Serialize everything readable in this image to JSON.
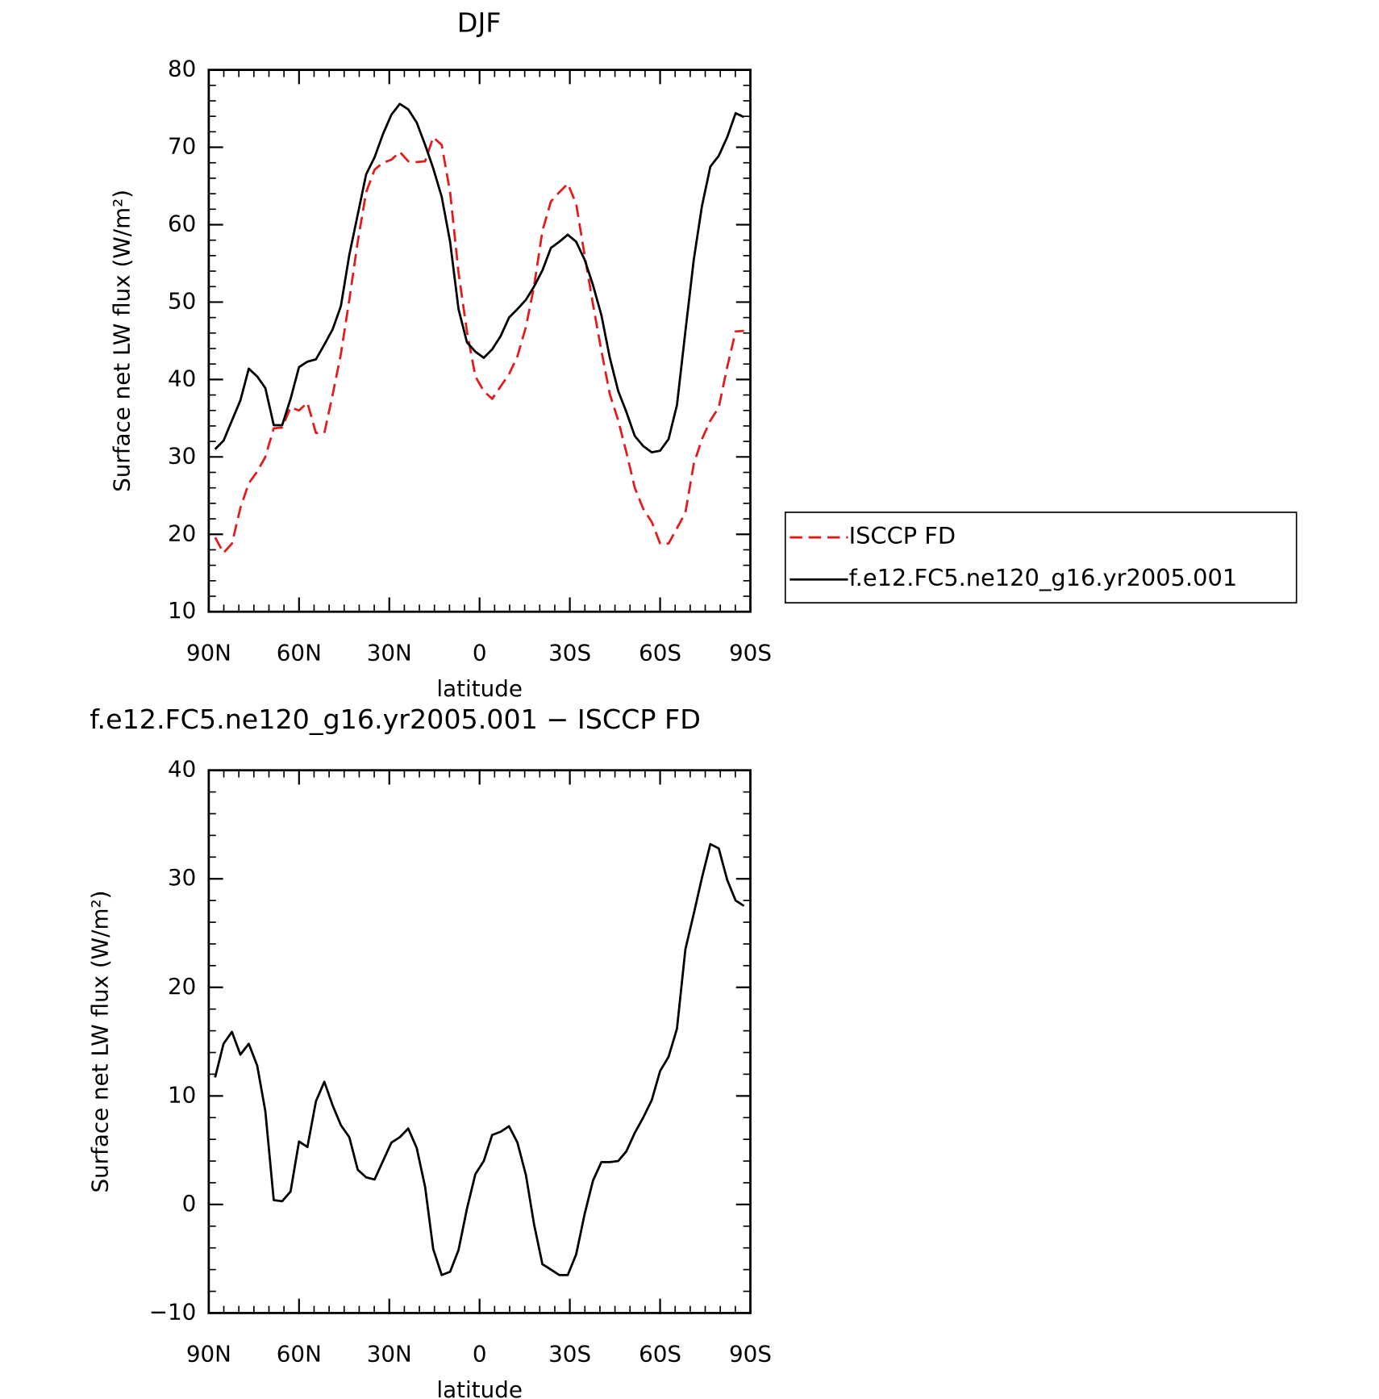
{
  "chart_data": [
    {
      "type": "line",
      "title": "DJF",
      "xlabel": "latitude",
      "ylabel": "Surface net LW flux (W/m²)",
      "x": [
        87.9,
        85.1,
        82.3,
        79.5,
        76.7,
        73.9,
        71.2,
        68.4,
        65.6,
        62.8,
        60.0,
        57.2,
        54.4,
        51.6,
        48.8,
        46.1,
        43.3,
        40.5,
        37.7,
        34.9,
        32.1,
        29.3,
        26.5,
        23.7,
        20.9,
        18.1,
        15.4,
        12.6,
        9.8,
        7.0,
        4.2,
        1.4,
        -1.4,
        -4.2,
        -7.0,
        -9.8,
        -12.6,
        -15.4,
        -18.1,
        -20.9,
        -23.7,
        -26.5,
        -29.3,
        -32.1,
        -34.9,
        -37.7,
        -40.5,
        -43.3,
        -46.1,
        -48.8,
        -51.6,
        -54.4,
        -57.2,
        -60.0,
        -62.8,
        -65.6,
        -68.4,
        -71.2,
        -73.9,
        -76.7,
        -79.5,
        -82.3,
        -85.1,
        -87.9
      ],
      "series": [
        {
          "name": "ISCCP FD",
          "color": "#e51b1b",
          "line_style": "dashed",
          "values": [
            19.6,
            17.6,
            18.8,
            23.4,
            26.6,
            28.1,
            30.0,
            33.7,
            33.8,
            36.4,
            36.0,
            37.0,
            33.1,
            33.1,
            38.1,
            43.3,
            50.3,
            57.8,
            64.2,
            67.1,
            68.0,
            68.4,
            69.4,
            68.2,
            68.1,
            68.2,
            71.3,
            70.3,
            64.2,
            53.8,
            46.2,
            40.4,
            38.5,
            37.5,
            39.1,
            40.7,
            43.0,
            46.8,
            52.0,
            59.2,
            63.0,
            64.2,
            65.3,
            62.7,
            56.1,
            49.7,
            43.7,
            38.1,
            34.7,
            30.6,
            26.0,
            23.3,
            21.6,
            18.8,
            18.8,
            20.8,
            22.8,
            29.1,
            32.3,
            34.7,
            36.4,
            41.6,
            46.2,
            46.3
          ]
        },
        {
          "name": "f.e12.FC5.ne120_g16.yr2005.001",
          "color": "#000000",
          "line_style": "solid",
          "values": [
            31.0,
            32.1,
            34.7,
            37.3,
            41.4,
            40.4,
            38.9,
            34.1,
            34.1,
            37.5,
            41.6,
            42.3,
            42.6,
            44.5,
            46.5,
            49.5,
            56.1,
            61.3,
            66.5,
            68.7,
            71.7,
            74.2,
            75.6,
            74.9,
            73.2,
            70.3,
            67.3,
            63.6,
            57.8,
            49.1,
            44.8,
            43.6,
            42.8,
            43.9,
            45.6,
            48.0,
            49.1,
            50.3,
            52.0,
            54.1,
            57.0,
            57.8,
            58.7,
            57.8,
            55.5,
            52.2,
            48.3,
            42.8,
            38.5,
            35.8,
            32.7,
            31.4,
            30.6,
            30.8,
            32.3,
            36.7,
            46.2,
            55.5,
            62.4,
            67.5,
            68.9,
            71.3,
            74.4,
            73.9
          ]
        }
      ],
      "xlim": [
        90,
        -90
      ],
      "xticks": [
        {
          "value": 90,
          "label": "90N"
        },
        {
          "value": 60,
          "label": "60N"
        },
        {
          "value": 30,
          "label": "30N"
        },
        0,
        {
          "value": -30,
          "label": "30S"
        },
        {
          "value": -60,
          "label": "60S"
        },
        {
          "value": -90,
          "label": "90S"
        }
      ],
      "ylim": [
        10,
        80
      ],
      "yticks": [
        10,
        20,
        30,
        40,
        50,
        60,
        70,
        80
      ],
      "legend": "right"
    },
    {
      "type": "line",
      "title": "f.e12.FC5.ne120_g16.yr2005.001 − ISCCP FD",
      "xlabel": "latitude",
      "ylabel": "Surface net LW flux (W/m²)",
      "x": [
        87.9,
        85.1,
        82.3,
        79.5,
        76.7,
        73.9,
        71.2,
        68.4,
        65.6,
        62.8,
        60.0,
        57.2,
        54.4,
        51.6,
        48.8,
        46.1,
        43.3,
        40.5,
        37.7,
        34.9,
        32.1,
        29.3,
        26.5,
        23.7,
        20.9,
        18.1,
        15.4,
        12.6,
        9.8,
        7.0,
        4.2,
        1.4,
        -1.4,
        -4.2,
        -7.0,
        -9.8,
        -12.6,
        -15.4,
        -18.1,
        -20.9,
        -23.7,
        -26.5,
        -29.3,
        -32.1,
        -34.9,
        -37.7,
        -40.5,
        -43.3,
        -46.1,
        -48.8,
        -51.6,
        -54.4,
        -57.2,
        -60.0,
        -62.8,
        -65.6,
        -68.4,
        -71.2,
        -73.9,
        -76.7,
        -79.5,
        -82.3,
        -85.1,
        -87.9
      ],
      "series": [
        {
          "color": "#000000",
          "line_style": "solid",
          "values": [
            11.7,
            14.8,
            15.9,
            13.8,
            14.8,
            12.8,
            8.6,
            0.4,
            0.3,
            1.2,
            5.8,
            5.3,
            9.5,
            11.3,
            9.1,
            7.3,
            6.2,
            3.2,
            2.5,
            2.3,
            4.0,
            5.7,
            6.2,
            7.0,
            5.2,
            1.6,
            -4.1,
            -6.5,
            -6.2,
            -4.2,
            -0.4,
            2.8,
            4.0,
            6.4,
            6.7,
            7.2,
            5.7,
            2.7,
            -1.8,
            -5.5,
            -6.0,
            -6.5,
            -6.5,
            -4.6,
            -0.9,
            2.2,
            3.9,
            3.9,
            4.0,
            4.9,
            6.6,
            8.0,
            9.6,
            12.3,
            13.6,
            16.2,
            23.5,
            26.8,
            30.1,
            33.2,
            32.8,
            29.9,
            28.0,
            27.5
          ]
        }
      ],
      "xlim": [
        90,
        -90
      ],
      "xticks": [
        {
          "value": 90,
          "label": "90N"
        },
        {
          "value": 60,
          "label": "60N"
        },
        {
          "value": 30,
          "label": "30N"
        },
        0,
        {
          "value": -30,
          "label": "30S"
        },
        {
          "value": -60,
          "label": "60S"
        },
        {
          "value": -90,
          "label": "90S"
        }
      ],
      "ylim": [
        -10,
        40
      ],
      "yticks": [
        {
          "value": -10,
          "label": "−10"
        },
        0,
        10,
        20,
        30,
        40
      ]
    }
  ]
}
